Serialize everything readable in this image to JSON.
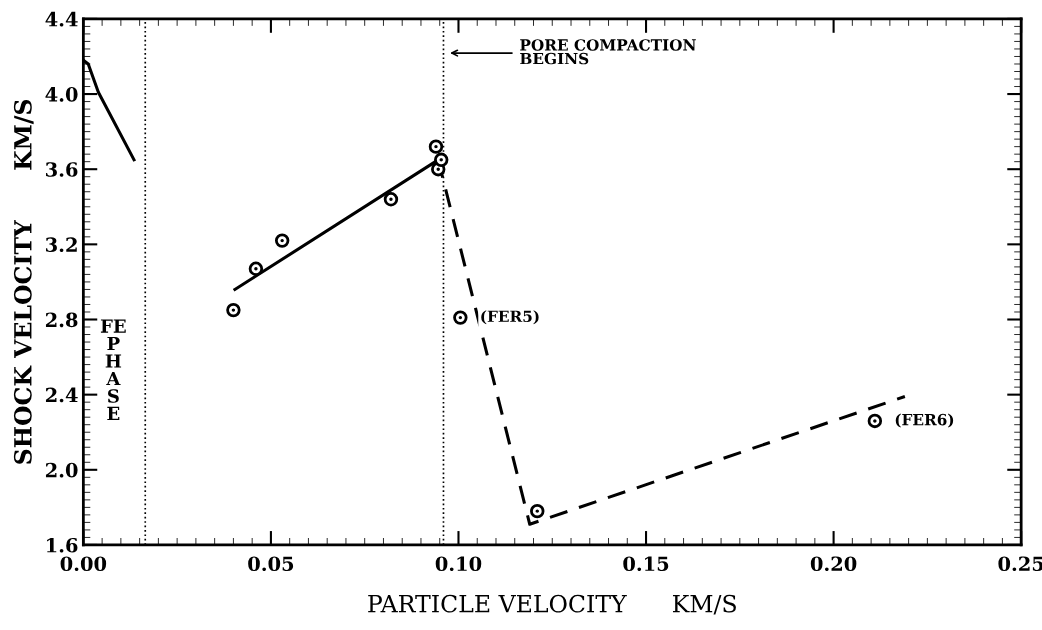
{
  "chart_data": {
    "type": "scatter",
    "xlabel": "PARTICLE VELOCITY      KM/S",
    "ylabel": "SHOCK VELOCITY      KM/S",
    "xlim": [
      0,
      0.25
    ],
    "xticks": [
      {
        "value": 0,
        "label": "0.00"
      },
      0.05,
      {
        "value": 0.1,
        "label": "0.10"
      },
      0.15,
      {
        "value": 0.2,
        "label": "0.20"
      },
      0.25
    ],
    "ylim": [
      1.6,
      4.4
    ],
    "yticks": [
      1.6,
      {
        "value": 2.0,
        "label": "2.0"
      },
      2.4,
      2.8,
      3.2,
      3.6,
      {
        "value": 4.0,
        "label": "4.0"
      },
      4.4
    ],
    "grid": false,
    "legend": false,
    "series": [
      {
        "marker": "circle",
        "color": "#000000",
        "x": [
          0.04,
          0.046,
          0.053,
          0.082,
          0.094,
          0.0946,
          0.0954,
          0.1005,
          0.121,
          0.211
        ],
        "values": [
          2.85,
          3.07,
          3.22,
          3.44,
          3.72,
          3.6,
          3.65,
          2.81,
          1.78,
          2.26
        ]
      },
      {
        "type": "line",
        "line_style": "solid",
        "color": "#000000",
        "x": [
          0.0404,
          0.0954
        ],
        "values": [
          2.96,
          3.66
        ]
      },
      {
        "type": "line",
        "line_style": "dashed",
        "color": "#000000",
        "x": [
          0.0946,
          0.119,
          0.219
        ],
        "values": [
          3.65,
          1.71,
          2.39
        ]
      },
      {
        "type": "line",
        "line_style": "solid",
        "color": "#000000",
        "x": [
          0.0,
          0.0013,
          0.004,
          0.0135
        ],
        "values": [
          4.18,
          4.16,
          4.01,
          3.65
        ]
      }
    ],
    "ref_lines": [
      {
        "axis": "x",
        "value": 0.0165,
        "line_style": "dotted",
        "color": "#000000"
      },
      {
        "axis": "x",
        "value": 0.096,
        "line_style": "dotted",
        "color": "#000000"
      }
    ],
    "annotations": [
      {
        "text": "(FER5)",
        "x": 0.1005,
        "y": 2.81
      },
      {
        "text": "(FER6)",
        "x": 0.211,
        "y": 2.26
      },
      "PORE COMPACTION\nBEGINS",
      "FE\nP\nH\nA\nS\nE"
    ]
  }
}
